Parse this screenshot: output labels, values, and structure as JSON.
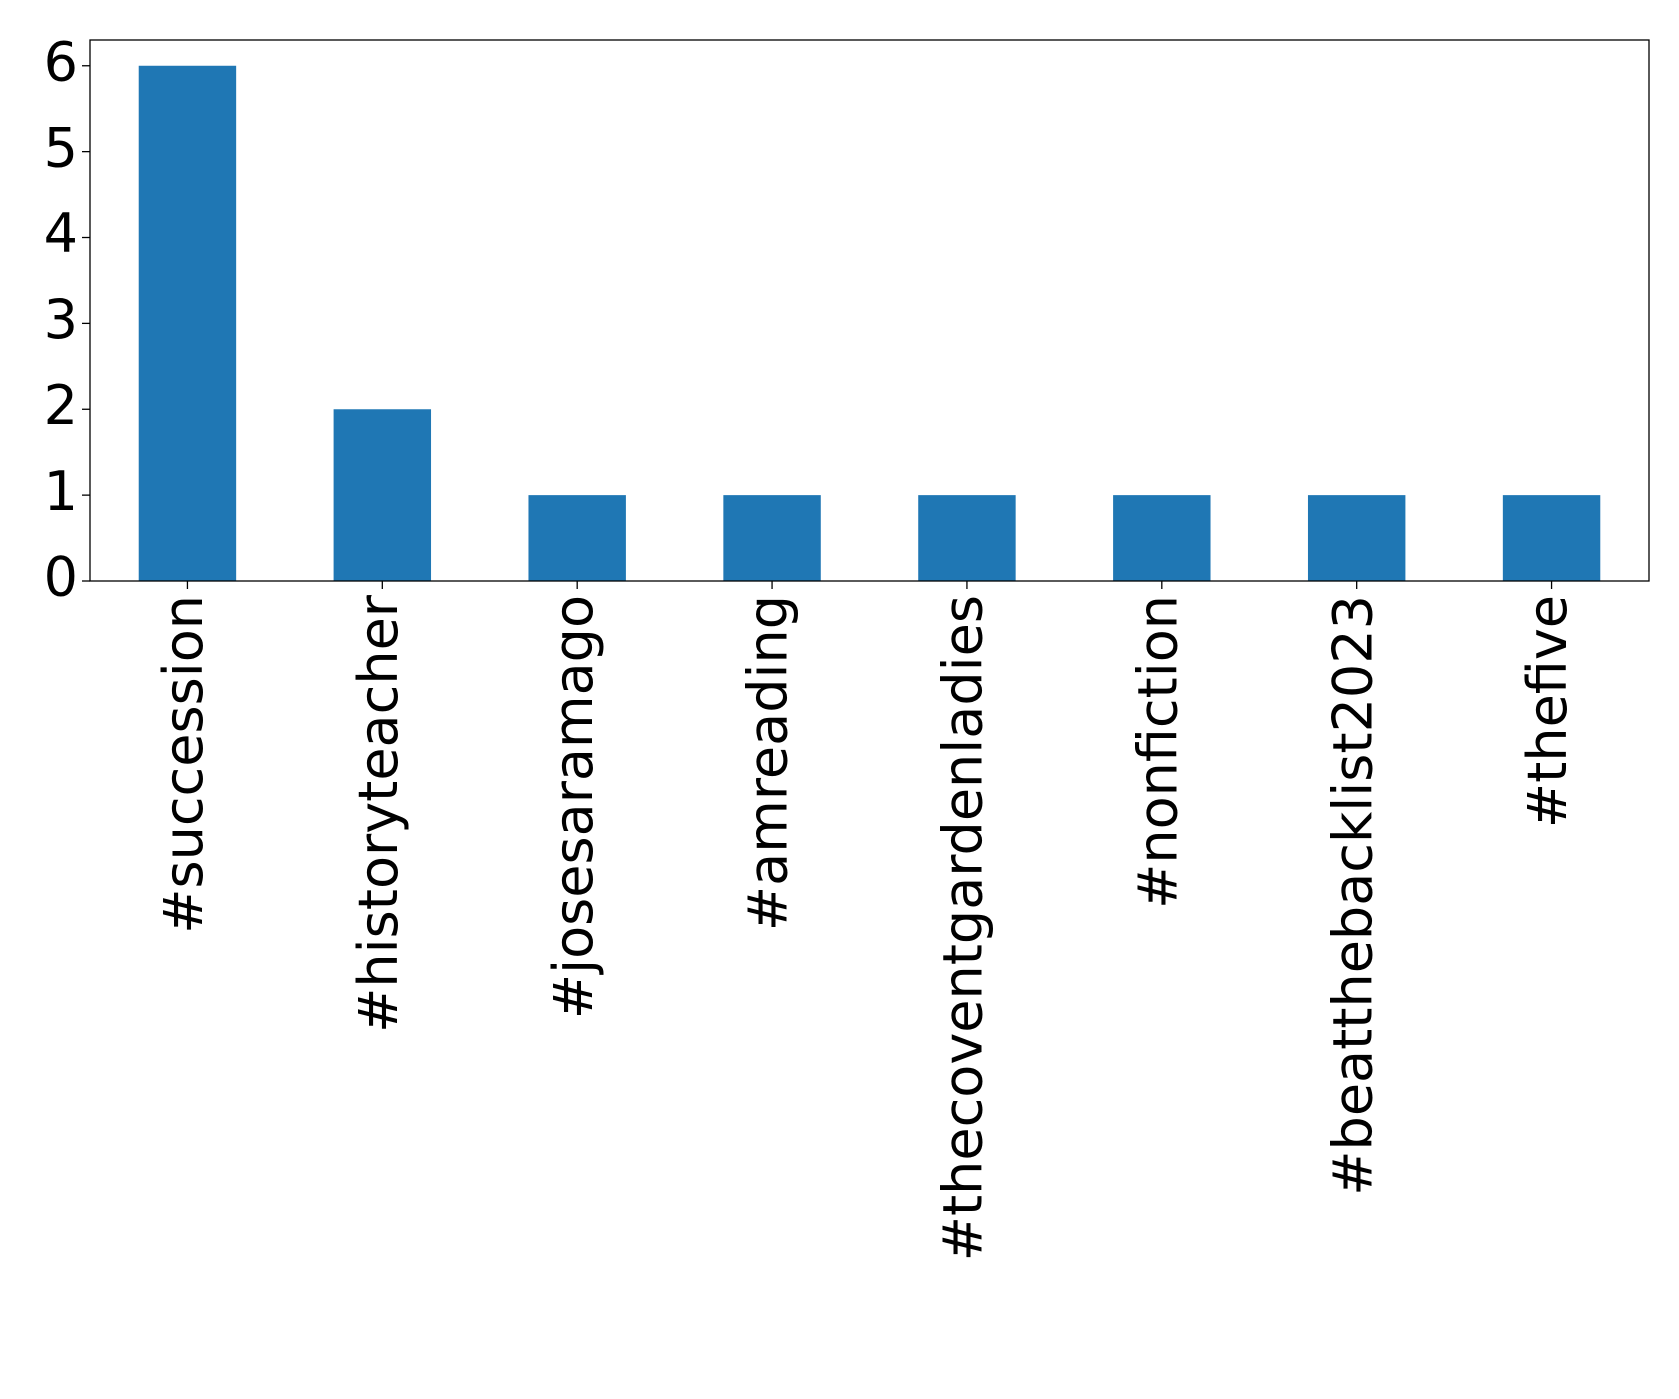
{
  "chart_data": {
    "type": "bar",
    "categories": [
      "#succession",
      "#historyteacher",
      "#josesaramago",
      "#amreading",
      "#thecoventgardenladies",
      "#nonfiction",
      "#beatthebacklist2023",
      "#thefive"
    ],
    "values": [
      6,
      2,
      1,
      1,
      1,
      1,
      1,
      1
    ],
    "color": "#1f77b4",
    "ylim": [
      0,
      6.3
    ],
    "yticks": [
      0,
      1,
      2,
      3,
      4,
      5,
      6
    ],
    "grid": false
  }
}
